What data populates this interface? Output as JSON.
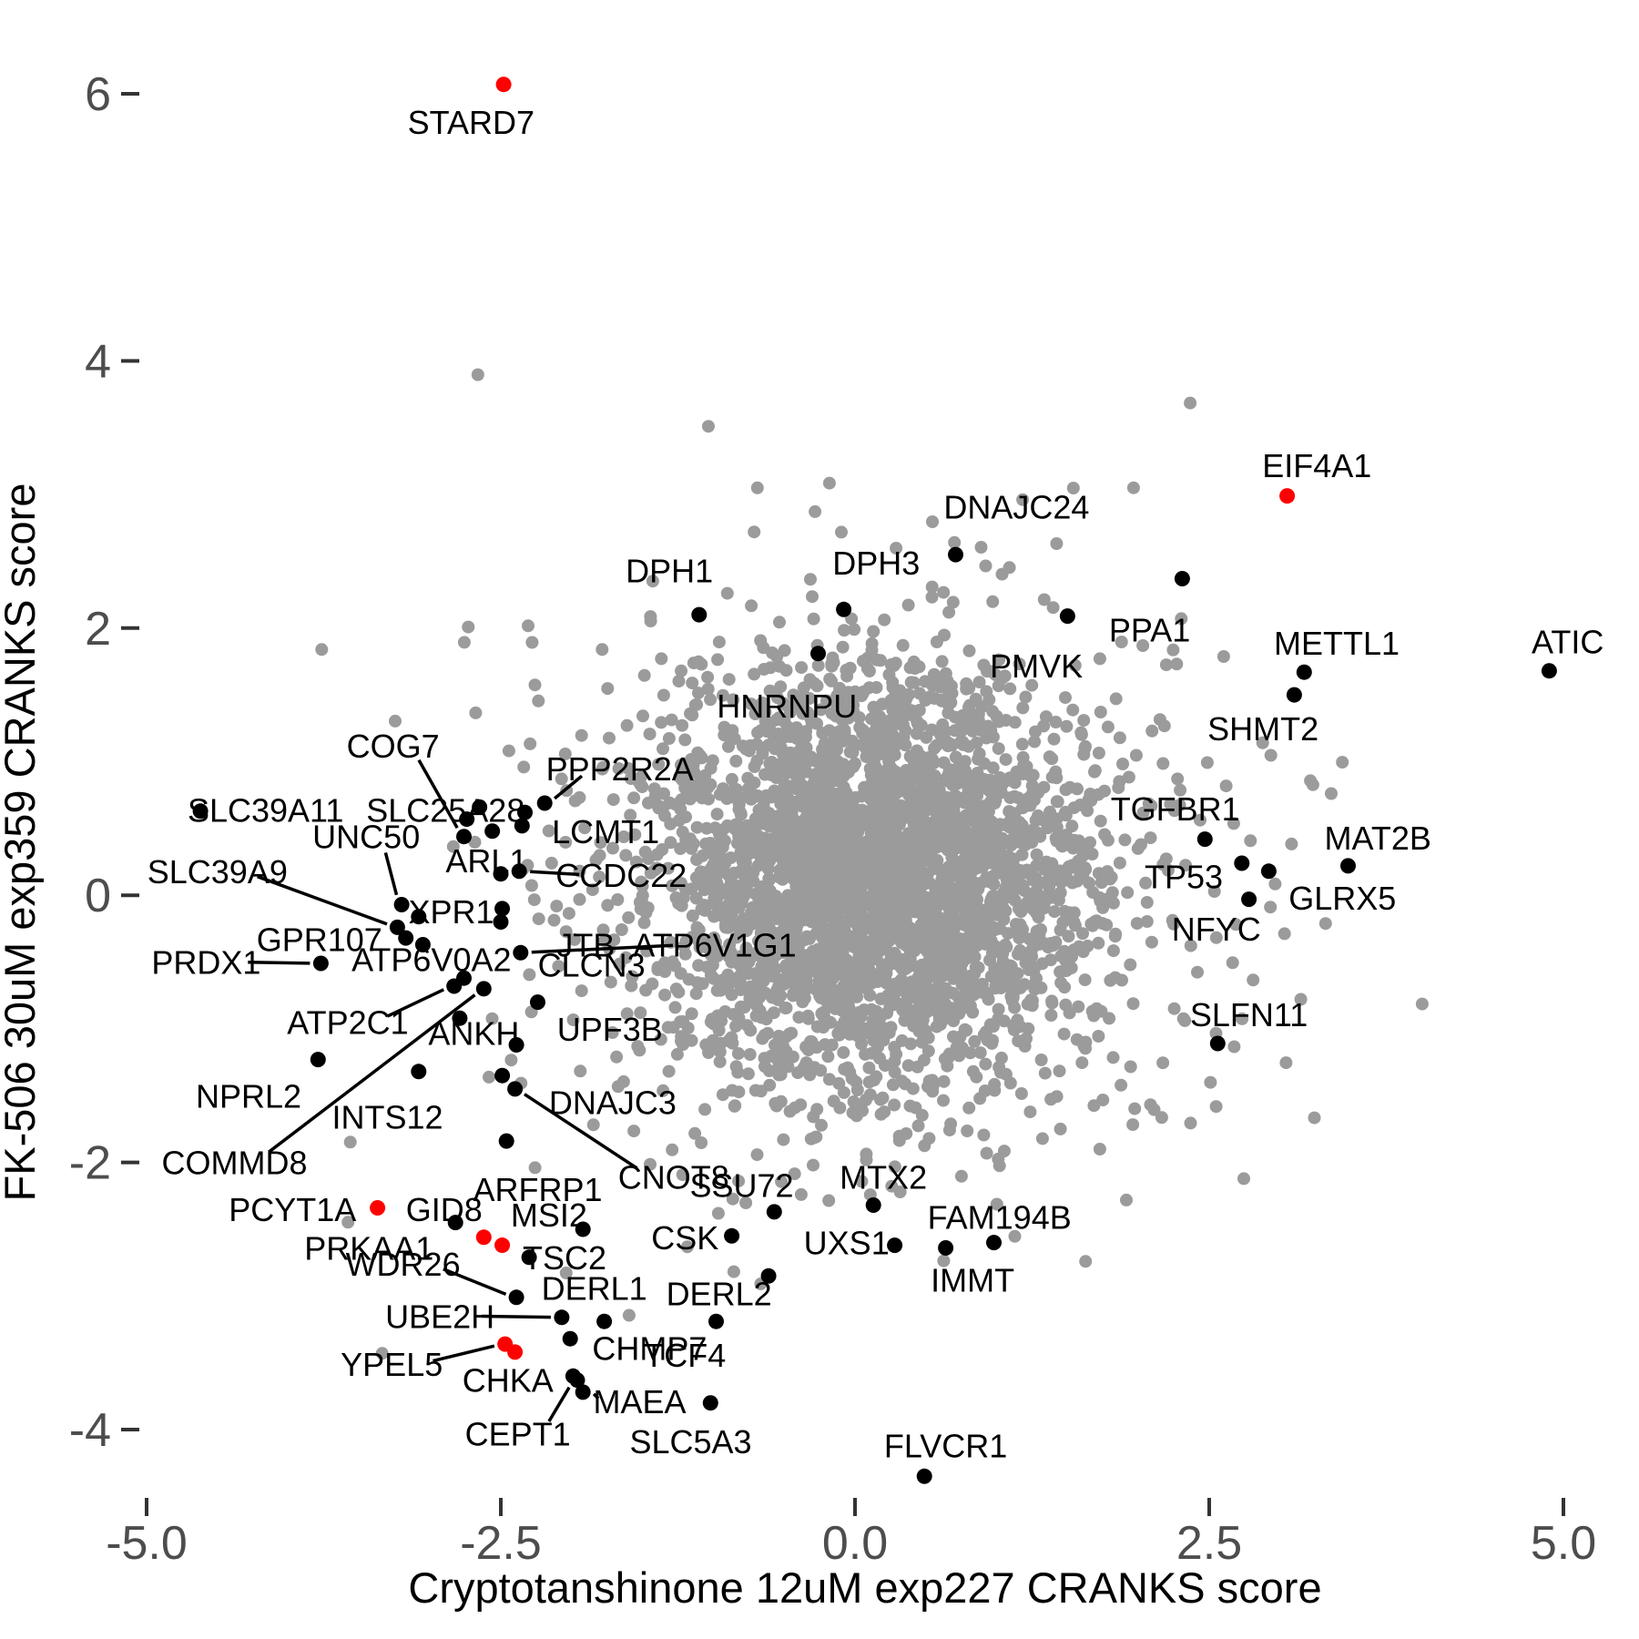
{
  "chart_data": {
    "type": "scatter",
    "title": "",
    "xlabel": "Cryptotanshinone 12uM exp227 CRANKS score",
    "ylabel": "FK-506 30uM exp359 CRANKS score",
    "xlim": [
      -5,
      5
    ],
    "ylim": [
      -4,
      6
    ],
    "x_ticks": [
      -5.0,
      -2.5,
      0.0,
      2.5,
      5.0
    ],
    "x_tick_labels": [
      "-5.0",
      "-2.5",
      "0.0",
      "2.5",
      "5.0"
    ],
    "y_ticks": [
      6,
      4,
      2,
      0,
      -2,
      -4
    ],
    "y_tick_labels": [
      "6",
      "4",
      "2",
      "0",
      "-2",
      "-4"
    ],
    "grid": false,
    "legend": "none",
    "colors": {
      "background_points": "#9b9b9b",
      "labeled_points": "#000000",
      "highlight_points": "#ff0000",
      "tick_text": "#4d4d4d",
      "tick_mark": "#333333",
      "axis_title": "#000000",
      "leader_line": "#000000"
    },
    "labeled_genes": [
      {
        "name": "STARD7",
        "x": -2.48,
        "y": 6.07,
        "color": "red",
        "lx": -2.71,
        "ly": 5.79,
        "leader": false
      },
      {
        "name": "DPH1",
        "x": -1.1,
        "y": 2.1,
        "color": "black",
        "lx": -1.31,
        "ly": 2.43,
        "leader": false
      },
      {
        "name": "DPH3",
        "x": -0.08,
        "y": 2.14,
        "color": "black",
        "lx": 0.15,
        "ly": 2.49,
        "leader": false
      },
      {
        "name": "DNAJC24",
        "x": 0.71,
        "y": 2.55,
        "color": "black",
        "lx": 1.14,
        "ly": 2.91,
        "leader": false
      },
      {
        "name": "HNRNPU",
        "x": -0.26,
        "y": 1.81,
        "color": "black",
        "lx": -0.48,
        "ly": 1.42,
        "leader": false
      },
      {
        "name": "PMVK",
        "x": 1.5,
        "y": 2.09,
        "color": "black",
        "lx": 1.28,
        "ly": 1.72,
        "leader": false
      },
      {
        "name": "PPA1",
        "x": 2.31,
        "y": 2.37,
        "color": "black",
        "lx": 2.08,
        "ly": 1.99,
        "leader": false
      },
      {
        "name": "EIF4A1",
        "x": 3.05,
        "y": 2.99,
        "color": "red",
        "lx": 3.26,
        "ly": 3.22,
        "leader": false
      },
      {
        "name": "METTL1",
        "x": 3.17,
        "y": 1.67,
        "color": "black",
        "lx": 3.4,
        "ly": 1.89,
        "leader": false
      },
      {
        "name": "SHMT2",
        "x": 3.1,
        "y": 1.5,
        "color": "black",
        "lx": 2.88,
        "ly": 1.25,
        "leader": false
      },
      {
        "name": "ATIC",
        "x": 4.9,
        "y": 1.68,
        "color": "black",
        "lx": 5.03,
        "ly": 1.9,
        "leader": false
      },
      {
        "name": "TGFBR1",
        "x": 2.47,
        "y": 0.42,
        "color": "black",
        "lx": 2.26,
        "ly": 0.65,
        "leader": false
      },
      {
        "name": "MAT2B",
        "x": 3.48,
        "y": 0.22,
        "color": "black",
        "lx": 3.69,
        "ly": 0.43,
        "leader": false
      },
      {
        "name": "TP53",
        "x": 2.73,
        "y": 0.24,
        "color": "black",
        "lx": 2.32,
        "ly": 0.14,
        "leader": false
      },
      {
        "name": "GLRX5",
        "x": 2.92,
        "y": 0.18,
        "color": "black",
        "lx": 3.44,
        "ly": -0.02,
        "leader": false
      },
      {
        "name": "NFYC",
        "x": 2.78,
        "y": -0.03,
        "color": "black",
        "lx": 2.55,
        "ly": -0.25,
        "leader": false
      },
      {
        "name": "SLFN11",
        "x": 2.56,
        "y": -1.11,
        "color": "black",
        "lx": 2.78,
        "ly": -0.89,
        "leader": false
      },
      {
        "name": "SLC39A11",
        "x": -4.62,
        "y": 0.63,
        "color": "black",
        "lx": -4.16,
        "ly": 0.64,
        "leader": false
      },
      {
        "name": "COG7",
        "x": -2.76,
        "y": 0.44,
        "color": "black",
        "lx": -3.26,
        "ly": 1.12,
        "leader": true
      },
      {
        "name": "SLC25A28",
        "x": -2.35,
        "y": 0.52,
        "color": "black",
        "lx": -2.89,
        "ly": 0.64,
        "leader": false
      },
      {
        "name": "PPP2R2A",
        "x": -2.19,
        "y": 0.69,
        "color": "black",
        "lx": -1.66,
        "ly": 0.95,
        "leader": true
      },
      {
        "name": "LCMT1",
        "x": -2.33,
        "y": 0.62,
        "color": "black",
        "lx": -1.76,
        "ly": 0.48,
        "leader": false
      },
      {
        "name": "UNC50",
        "x": -3.2,
        "y": -0.07,
        "color": "black",
        "lx": -3.45,
        "ly": 0.44,
        "leader": true
      },
      {
        "name": "SLC39A9",
        "x": -3.23,
        "y": -0.24,
        "color": "black",
        "lx": -4.5,
        "ly": 0.18,
        "leader": true
      },
      {
        "name": "ARL1",
        "x": -2.5,
        "y": 0.16,
        "color": "black",
        "lx": -2.6,
        "ly": 0.26,
        "leader": false
      },
      {
        "name": "CCDC22",
        "x": -2.37,
        "y": 0.18,
        "color": "black",
        "lx": -1.65,
        "ly": 0.15,
        "leader": true
      },
      {
        "name": "XPR1",
        "x": -3.08,
        "y": -0.16,
        "color": "black",
        "lx": -2.85,
        "ly": -0.12,
        "leader": false
      },
      {
        "name": "GPR107",
        "x": -3.17,
        "y": -0.32,
        "color": "black",
        "lx": -3.78,
        "ly": -0.33,
        "leader": false
      },
      {
        "name": "JTB",
        "x": -2.5,
        "y": -0.2,
        "color": "black",
        "lx": -1.9,
        "ly": -0.37,
        "leader": false
      },
      {
        "name": "ATP6V1G1",
        "x": -2.36,
        "y": -0.43,
        "color": "black",
        "lx": -0.99,
        "ly": -0.37,
        "leader": true
      },
      {
        "name": "PRDX1",
        "x": -3.77,
        "y": -0.51,
        "color": "black",
        "lx": -4.58,
        "ly": -0.5,
        "leader": true
      },
      {
        "name": "ATP6V0A2",
        "x": -2.76,
        "y": -0.62,
        "color": "black",
        "lx": -2.99,
        "ly": -0.48,
        "leader": false
      },
      {
        "name": "CLCN3",
        "x": -2.24,
        "y": -0.8,
        "color": "black",
        "lx": -1.86,
        "ly": -0.52,
        "leader": false
      },
      {
        "name": "ATP2C1",
        "x": -2.83,
        "y": -0.68,
        "color": "black",
        "lx": -3.58,
        "ly": -0.95,
        "leader": true
      },
      {
        "name": "ANKH",
        "x": -2.79,
        "y": -0.92,
        "color": "black",
        "lx": -2.69,
        "ly": -1.03,
        "leader": false
      },
      {
        "name": "UPF3B",
        "x": -2.39,
        "y": -1.12,
        "color": "black",
        "lx": -1.73,
        "ly": -1.0,
        "leader": false
      },
      {
        "name": "NPRL2",
        "x": -3.79,
        "y": -1.23,
        "color": "black",
        "lx": -4.28,
        "ly": -1.5,
        "leader": false
      },
      {
        "name": "INTS12",
        "x": -3.08,
        "y": -1.32,
        "color": "black",
        "lx": -3.3,
        "ly": -1.66,
        "leader": false
      },
      {
        "name": "COMMD8",
        "x": -2.62,
        "y": -0.7,
        "color": "black",
        "lx": -4.38,
        "ly": -2.0,
        "leader": true
      },
      {
        "name": "DNAJC3",
        "x": -2.49,
        "y": -1.35,
        "color": "black",
        "lx": -1.71,
        "ly": -1.55,
        "leader": false
      },
      {
        "name": "CNOT8",
        "x": -2.4,
        "y": -1.45,
        "color": "black",
        "lx": -1.28,
        "ly": -2.11,
        "leader": true
      },
      {
        "name": "ARFRP1",
        "x": -2.46,
        "y": -1.84,
        "color": "black",
        "lx": -2.24,
        "ly": -2.2,
        "leader": false
      },
      {
        "name": "PRKAA1",
        "x": -2.82,
        "y": -2.45,
        "color": "black",
        "lx": -3.43,
        "ly": -2.64,
        "leader": false
      },
      {
        "name": "TSC2",
        "x": -1.92,
        "y": -2.5,
        "color": "black",
        "lx": -2.05,
        "ly": -2.71,
        "leader": false
      },
      {
        "name": "SSU72",
        "x": -0.57,
        "y": -2.37,
        "color": "black",
        "lx": -0.8,
        "ly": -2.17,
        "leader": false
      },
      {
        "name": "MTX2",
        "x": 0.13,
        "y": -2.32,
        "color": "black",
        "lx": 0.2,
        "ly": -2.11,
        "leader": false
      },
      {
        "name": "PCYT1A",
        "x": -3.37,
        "y": -2.34,
        "color": "red",
        "lx": -3.97,
        "ly": -2.35,
        "leader": false
      },
      {
        "name": "GID8",
        "x": -2.62,
        "y": -2.56,
        "color": "red",
        "lx": -2.9,
        "ly": -2.35,
        "leader": false
      },
      {
        "name": "MSI2",
        "x": -2.3,
        "y": -2.71,
        "color": "black",
        "lx": -2.16,
        "ly": -2.39,
        "leader": false
      },
      {
        "name": "CSK",
        "x": -0.87,
        "y": -2.55,
        "color": "black",
        "lx": -1.2,
        "ly": -2.56,
        "leader": false
      },
      {
        "name": "UXS1",
        "x": 0.28,
        "y": -2.62,
        "color": "black",
        "lx": -0.06,
        "ly": -2.6,
        "leader": false
      },
      {
        "name": "FAM194B",
        "x": 0.98,
        "y": -2.6,
        "color": "black",
        "lx": 1.02,
        "ly": -2.41,
        "leader": false
      },
      {
        "name": "IMMT",
        "x": 0.64,
        "y": -2.64,
        "color": "black",
        "lx": 0.83,
        "ly": -2.88,
        "leader": false
      },
      {
        "name": "WDR26",
        "x": -2.39,
        "y": -3.01,
        "color": "black",
        "lx": -3.19,
        "ly": -2.76,
        "leader": true
      },
      {
        "name": "UBE2H",
        "x": -2.07,
        "y": -3.16,
        "color": "black",
        "lx": -2.93,
        "ly": -3.15,
        "leader": true
      },
      {
        "name": "DERL1",
        "x": -1.77,
        "y": -3.19,
        "color": "black",
        "lx": -1.84,
        "ly": -2.94,
        "leader": false
      },
      {
        "name": "DERL2",
        "x": -0.98,
        "y": -3.19,
        "color": "black",
        "lx": -0.96,
        "ly": -2.98,
        "leader": false
      },
      {
        "name": "CHMP7",
        "x": -2.01,
        "y": -3.32,
        "color": "black",
        "lx": -1.45,
        "ly": -3.39,
        "leader": false
      },
      {
        "name": "TCF4",
        "x": null,
        "y": null,
        "color": "black",
        "lx": -1.2,
        "ly": -3.44,
        "leader": false
      },
      {
        "name": "YPEL5",
        "x": -2.47,
        "y": -3.36,
        "color": "red",
        "lx": -3.27,
        "ly": -3.51,
        "leader": true
      },
      {
        "name": "CHKA",
        "x": -1.99,
        "y": -3.6,
        "color": "black",
        "lx": -2.45,
        "ly": -3.63,
        "leader": false
      },
      {
        "name": "MAEA",
        "x": -1.92,
        "y": -3.72,
        "color": "black",
        "lx": -1.52,
        "ly": -3.79,
        "leader": true
      },
      {
        "name": "CEPT1",
        "x": -1.96,
        "y": -3.63,
        "color": "black",
        "lx": -2.38,
        "ly": -4.03,
        "leader": true
      },
      {
        "name": "SLC5A3",
        "x": -1.02,
        "y": -3.8,
        "color": "black",
        "lx": -1.16,
        "ly": -4.09,
        "leader": false
      },
      {
        "name": "FLVCR1",
        "x": 0.49,
        "y": -4.35,
        "color": "black",
        "lx": 0.64,
        "ly": -4.12,
        "leader": false
      }
    ],
    "extra_black_points": [
      [
        -2.74,
        0.57
      ],
      [
        -2.65,
        0.66
      ],
      [
        -2.56,
        0.48
      ],
      [
        -3.05,
        -0.37
      ],
      [
        -0.61,
        -2.85
      ],
      [
        -2.49,
        -0.1
      ]
    ],
    "extra_red_points": [
      [
        -2.49,
        -2.62
      ],
      [
        -2.4,
        -3.42
      ]
    ],
    "background_cloud": {
      "center": [
        0.12,
        0.12
      ],
      "layers": [
        {
          "n": 2600,
          "sx": 0.75,
          "sy": 0.72
        },
        {
          "n": 700,
          "sx": 1.15,
          "sy": 1.1
        },
        {
          "n": 130,
          "sx": 1.6,
          "sy": 1.5
        }
      ],
      "point_radius": 7,
      "labeled_point_radius": 8.5,
      "seed": 42
    }
  }
}
